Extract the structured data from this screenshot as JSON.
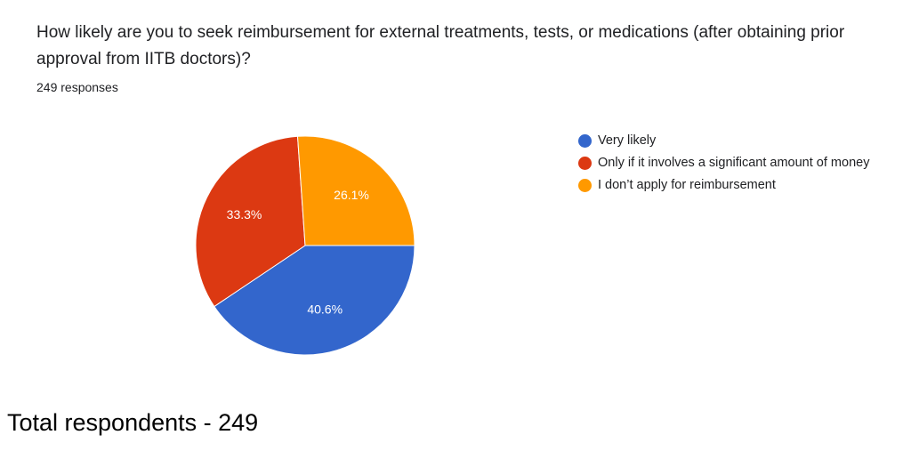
{
  "question": {
    "title": "How likely are you to seek reimbursement for external treatments, tests, or medications (after obtaining prior approval from IITB doctors)?",
    "responses": "249 responses"
  },
  "chart_data": {
    "type": "pie",
    "categories": [
      "Very likely",
      "Only if it involves a significant amount of money",
      "I don’t apply for reimbursement"
    ],
    "values": [
      40.6,
      33.3,
      26.1
    ],
    "value_labels": [
      "40.6%",
      "33.3%",
      "26.1%"
    ],
    "colors": [
      "#3366cc",
      "#dc3912",
      "#ff9900"
    ],
    "legend_position": "right"
  },
  "footer": {
    "total": "Total respondents - 249"
  }
}
